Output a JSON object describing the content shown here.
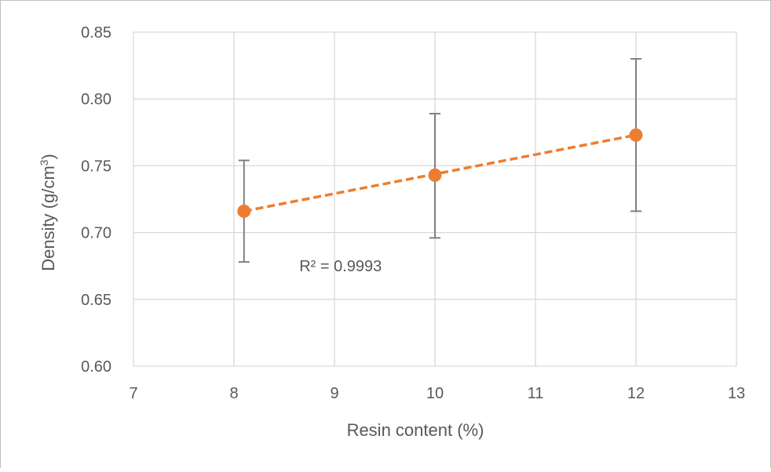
{
  "chart_data": {
    "type": "scatter",
    "title": "",
    "xlabel": "Resin content (%)",
    "ylabel_main": "Density (g/cm",
    "ylabel_sup": "3",
    "ylabel_close": ")",
    "xlim": [
      7,
      13
    ],
    "ylim": [
      0.6,
      0.85
    ],
    "x_ticks": [
      "7",
      "8",
      "9",
      "10",
      "11",
      "12",
      "13"
    ],
    "y_ticks": [
      "0.60",
      "0.65",
      "0.70",
      "0.75",
      "0.80",
      "0.85"
    ],
    "grid": true,
    "legend": "none",
    "series": [
      {
        "points": [
          {
            "x": 8.1,
            "y": 0.716,
            "err_low": 0.678,
            "err_high": 0.754
          },
          {
            "x": 10.0,
            "y": 0.743,
            "err_low": 0.696,
            "err_high": 0.789
          },
          {
            "x": 12.0,
            "y": 0.773,
            "err_low": 0.716,
            "err_high": 0.83
          }
        ],
        "color": "#ED7D31",
        "error_bar_color": "#808080"
      }
    ],
    "trendline": {
      "type": "linear",
      "from": {
        "x": 8.1,
        "y": 0.716
      },
      "to": {
        "x": 12.0,
        "y": 0.773
      },
      "color": "#ED7D31",
      "style": "dashed"
    },
    "annotations": [
      {
        "text": "R² = 0.9993",
        "x": 8.65,
        "y": 0.671
      }
    ]
  }
}
